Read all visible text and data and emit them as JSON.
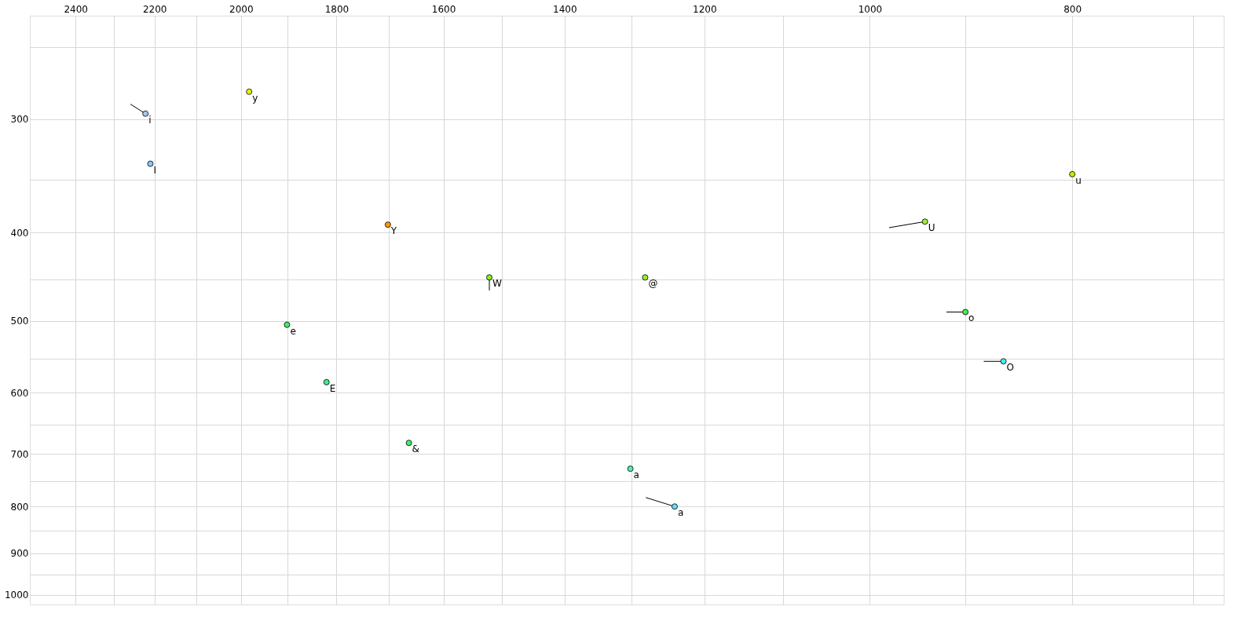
{
  "chart_data": {
    "type": "scatter",
    "log": "xy",
    "grid": true,
    "xlim": [
      2524,
      677
    ],
    "ylim": [
      1025,
      231
    ],
    "xticks": [
      2400,
      {
        "value": 2300,
        "label": null
      },
      2200,
      {
        "value": 2100,
        "label": null
      },
      2000,
      {
        "value": 1900,
        "label": null
      },
      1800,
      {
        "value": 1700,
        "label": null
      },
      1600,
      {
        "value": 1500,
        "label": null
      },
      1400,
      {
        "value": 1300,
        "label": null
      },
      1200,
      {
        "value": 1100,
        "label": null
      },
      1000,
      {
        "value": 900,
        "label": null
      },
      800,
      {
        "value": 700,
        "label": null
      }
    ],
    "yticks": [
      {
        "value": 250,
        "label": null
      },
      300,
      {
        "value": 350,
        "label": null
      },
      400,
      {
        "value": 450,
        "label": null
      },
      500,
      {
        "value": 550,
        "label": null
      },
      600,
      {
        "value": 650,
        "label": null
      },
      700,
      {
        "value": 750,
        "label": null
      },
      800,
      {
        "value": 850,
        "label": null
      },
      900,
      {
        "value": 950,
        "label": null
      },
      1000
    ],
    "series": [
      {
        "type": "line",
        "color": "#000000",
        "x": [
          2259,
          2222
        ],
        "values": [
          289,
          296
        ]
      },
      {
        "type": "line",
        "color": "#000000",
        "x": [
          979,
          941
        ],
        "values": [
          395,
          389
        ]
      },
      {
        "type": "line",
        "color": "#000000",
        "x": [
          1521,
          1521
        ],
        "values": [
          463,
          448
        ]
      },
      {
        "type": "line",
        "color": "#000000",
        "x": [
          919,
          900
        ],
        "values": [
          489,
          489
        ]
      },
      {
        "type": "line",
        "color": "#000000",
        "x": [
          882,
          863
        ],
        "values": [
          554,
          554
        ]
      },
      {
        "type": "line",
        "color": "#000000",
        "x": [
          1280,
          1240
        ],
        "values": [
          782,
          800
        ]
      },
      {
        "marker": "circle",
        "x": [
          2222,
          2210,
          1982,
          800,
          1701,
          941,
          1521,
          1281,
          1901,
          900,
          863,
          1820,
          1662,
          1302,
          1240
        ],
        "values": [
          296,
          336,
          280,
          345,
          392,
          389,
          448,
          448,
          505,
          489,
          554,
          584,
          681,
          727,
          800
        ],
        "colors": [
          "#a8c4f0",
          "#88c8ff",
          "#e8f000",
          "#c8e800",
          "#ff9900",
          "#99ee33",
          "#88ee22",
          "#99ee22",
          "#44ee66",
          "#44ee44",
          "#44eeee",
          "#44ee88",
          "#44ee66",
          "#55eeaa",
          "#66ddee"
        ]
      }
    ],
    "annotations": [
      {
        "text": "i",
        "x": 2222,
        "y": 296
      },
      {
        "text": "I",
        "x": 2210,
        "y": 336
      },
      {
        "text": "y",
        "x": 1982,
        "y": 280
      },
      {
        "text": "u",
        "x": 800,
        "y": 345
      },
      {
        "text": "Y",
        "x": 1701,
        "y": 392
      },
      {
        "text": "U",
        "x": 941,
        "y": 389
      },
      {
        "text": "W",
        "x": 1521,
        "y": 448
      },
      {
        "text": "@",
        "x": 1281,
        "y": 448
      },
      {
        "text": "e",
        "x": 1901,
        "y": 505
      },
      {
        "text": "o",
        "x": 900,
        "y": 489
      },
      {
        "text": "O",
        "x": 863,
        "y": 554
      },
      {
        "text": "E",
        "x": 1820,
        "y": 584
      },
      {
        "text": "&",
        "x": 1662,
        "y": 681
      },
      {
        "text": "a",
        "x": 1302,
        "y": 727
      },
      {
        "text": "a",
        "x": 1240,
        "y": 800
      }
    ]
  }
}
